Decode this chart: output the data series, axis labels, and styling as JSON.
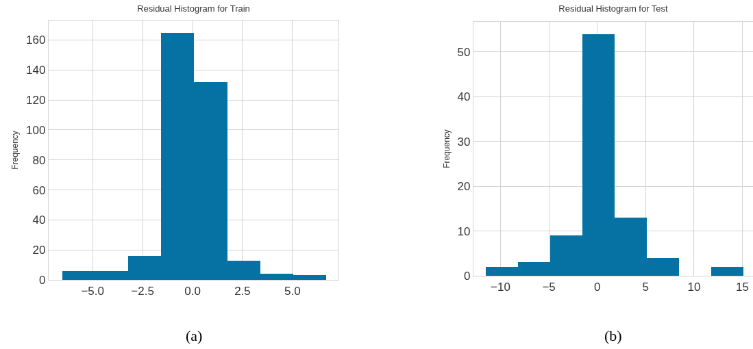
{
  "chart_data": [
    {
      "type": "histogram",
      "title": "Residual Histogram for Train",
      "ylabel": "Frequency",
      "bins": [
        -6.53,
        -4.88,
        -3.22,
        -1.57,
        0.08,
        1.73,
        3.39,
        5.04,
        6.69
      ],
      "values": [
        6,
        6,
        16,
        165,
        132,
        13,
        4,
        3
      ],
      "color": "#0572a3",
      "xlim": [
        -7.2,
        7.3
      ],
      "xticks": [
        {
          "value": -5,
          "label": "−5.0"
        },
        {
          "value": -2.5,
          "label": "−2.5"
        },
        {
          "value": 0,
          "label": "0.0"
        },
        {
          "value": 2.5,
          "label": "2.5"
        },
        {
          "value": 5,
          "label": "5.0"
        }
      ],
      "ylim": [
        0,
        173
      ],
      "yticks": [
        0,
        20,
        40,
        60,
        80,
        100,
        120,
        140,
        160
      ],
      "grid": true,
      "annotations": [
        "(a)"
      ]
    },
    {
      "type": "histogram",
      "title": "Residual Histogram for Test",
      "ylabel": "Frequency",
      "bins": [
        -11.5,
        -8.17,
        -4.84,
        -1.51,
        1.82,
        5.15,
        8.48,
        11.81,
        15.14
      ],
      "values": [
        2,
        3,
        9,
        54,
        13,
        4,
        0,
        2
      ],
      "color": "#0572a3",
      "xlim": [
        -12.8,
        16.1
      ],
      "xticks": [
        {
          "value": -10,
          "label": "−10"
        },
        {
          "value": -5,
          "label": "−5"
        },
        0,
        5,
        10,
        15
      ],
      "ylim": [
        0,
        56.7
      ],
      "yticks": [
        0,
        10,
        20,
        30,
        40,
        50
      ],
      "grid": true,
      "annotations": [
        "(b)"
      ]
    }
  ]
}
